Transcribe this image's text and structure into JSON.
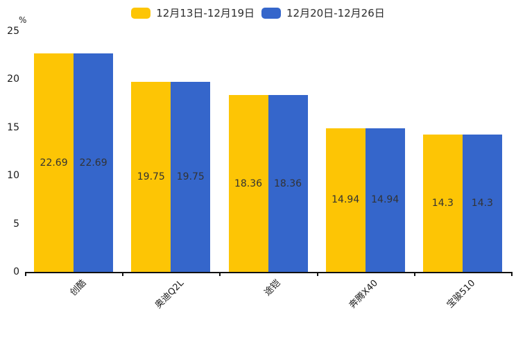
{
  "chart_data": {
    "type": "bar",
    "title": "",
    "xlabel": "",
    "ylabel": "%",
    "categories": [
      "创酷",
      "奥迪Q2L",
      "途铠",
      "奔腾X40",
      "宝骏510"
    ],
    "series": [
      {
        "name": "12月13日-12月19日",
        "color": "#FDC505",
        "values": [
          22.69,
          19.75,
          18.36,
          14.94,
          14.3
        ]
      },
      {
        "name": "12月20日-12月26日",
        "color": "#3566CB",
        "values": [
          22.69,
          19.75,
          18.36,
          14.94,
          14.3
        ]
      }
    ],
    "ylim": [
      0,
      25
    ],
    "yticks": [
      0,
      5,
      10,
      15,
      20,
      25
    ],
    "grid": false,
    "legend_position": "top-center",
    "value_label_position": "inside-center",
    "x_label_rotation_deg": 45
  },
  "colors": {
    "axis": "#111111",
    "text": "#1a1a1a",
    "value_label": "#333333",
    "background": "#ffffff"
  }
}
